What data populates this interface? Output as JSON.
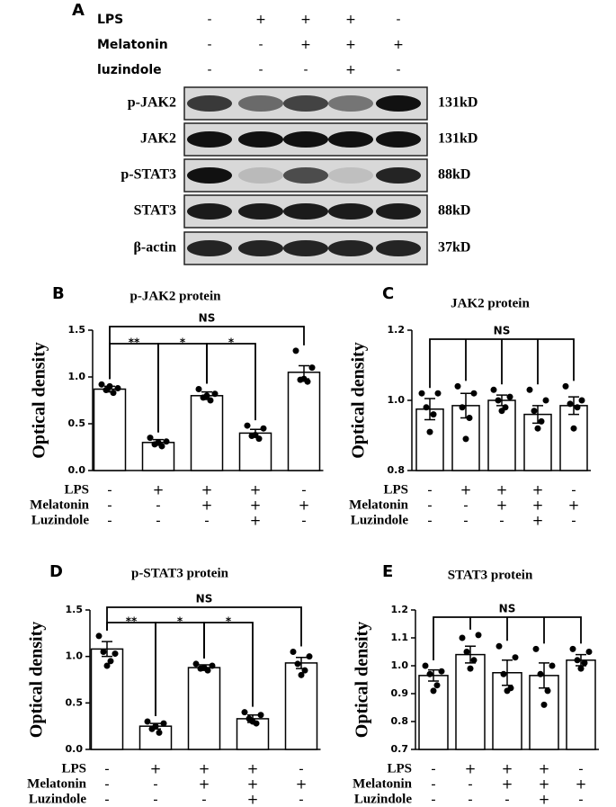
{
  "panel_a": {
    "letter": "A",
    "treatments": [
      {
        "name": "LPS",
        "signs": [
          "-",
          "+",
          "+",
          "+",
          "-"
        ]
      },
      {
        "name": "Melatonin",
        "signs": [
          "-",
          "-",
          "+",
          "+",
          "+"
        ]
      },
      {
        "name": "luzindole",
        "signs": [
          "-",
          "-",
          "-",
          "+",
          "-"
        ]
      }
    ],
    "blots": [
      {
        "name": "p-JAK2",
        "size": "131kD"
      },
      {
        "name": "JAK2",
        "size": "131kD"
      },
      {
        "name": "p-STAT3",
        "size": "88kD"
      },
      {
        "name": "STAT3",
        "size": "88kD"
      },
      {
        "name": "β-actin",
        "size": "37kD"
      }
    ]
  },
  "chart_data": [
    {
      "type": "bar",
      "panel": "B",
      "title": "p-JAK2 protein",
      "ylabel": "Optical density",
      "ylim": [
        0,
        1.5
      ],
      "yticks": [
        {
          "value": 0,
          "label": "0.0"
        },
        0.5,
        {
          "value": 1,
          "label": "1.0"
        },
        1.5
      ],
      "values": [
        0.87,
        0.3,
        0.8,
        0.4,
        1.05
      ],
      "errors": [
        0.03,
        0.03,
        0.04,
        0.04,
        0.07
      ],
      "points": [
        [
          0.92,
          0.88,
          0.86,
          0.83,
          0.9
        ],
        [
          0.35,
          0.31,
          0.28,
          0.26,
          0.3
        ],
        [
          0.87,
          0.82,
          0.78,
          0.75,
          0.8
        ],
        [
          0.48,
          0.45,
          0.37,
          0.34,
          0.38
        ],
        [
          1.28,
          1.1,
          0.97,
          0.95,
          0.98
        ]
      ],
      "color": "#ffffff",
      "annotations": [
        "**",
        "*",
        "*",
        "NS"
      ],
      "treatments": [
        {
          "name": "LPS",
          "signs": [
            "-",
            "+",
            "+",
            "+",
            "-"
          ]
        },
        {
          "name": "Melatonin",
          "signs": [
            "-",
            "-",
            "+",
            "+",
            "+"
          ]
        },
        {
          "name": "Luzindole",
          "signs": [
            "-",
            "-",
            "-",
            "+",
            "-"
          ]
        }
      ]
    },
    {
      "type": "bar",
      "panel": "C",
      "title": "JAK2 protein",
      "ylabel": "Optical density",
      "ylim": [
        0.8,
        1.2
      ],
      "yticks": [
        0.8,
        {
          "value": 1,
          "label": "1.0"
        },
        1.2
      ],
      "values": [
        0.975,
        0.985,
        1.0,
        0.96,
        0.985
      ],
      "errors": [
        0.03,
        0.035,
        0.015,
        0.025,
        0.025
      ],
      "points": [
        [
          1.02,
          1.02,
          0.98,
          0.96,
          0.91
        ],
        [
          1.04,
          1.02,
          0.98,
          0.95,
          0.89
        ],
        [
          1.03,
          1.01,
          1.0,
          0.98,
          0.97
        ],
        [
          1.03,
          1.0,
          0.97,
          0.94,
          0.92
        ],
        [
          1.04,
          1.0,
          0.99,
          0.98,
          0.92
        ]
      ],
      "color": "#ffffff",
      "annotations": [
        "NS"
      ],
      "treatments": [
        {
          "name": "LPS",
          "signs": [
            "-",
            "+",
            "+",
            "+",
            "-"
          ]
        },
        {
          "name": "Melatonin",
          "signs": [
            "-",
            "-",
            "+",
            "+",
            "+"
          ]
        },
        {
          "name": "Luzindole",
          "signs": [
            "-",
            "-",
            "-",
            "+",
            "-"
          ]
        }
      ]
    },
    {
      "type": "bar",
      "panel": "D",
      "title": "p-STAT3 protein",
      "ylabel": "Optical density",
      "ylim": [
        0,
        1.5
      ],
      "yticks": [
        {
          "value": 0,
          "label": "0.0"
        },
        0.5,
        {
          "value": 1,
          "label": "1.0"
        },
        1.5
      ],
      "values": [
        1.08,
        0.25,
        0.88,
        0.33,
        0.93
      ],
      "errors": [
        0.08,
        0.03,
        0.03,
        0.04,
        0.06
      ],
      "points": [
        [
          1.22,
          1.03,
          1.05,
          0.95,
          0.9
        ],
        [
          0.3,
          0.28,
          0.22,
          0.18,
          0.25
        ],
        [
          0.92,
          0.9,
          0.87,
          0.85,
          0.88
        ],
        [
          0.4,
          0.37,
          0.33,
          0.28,
          0.3
        ],
        [
          1.05,
          1.0,
          0.92,
          0.85,
          0.8
        ]
      ],
      "color": "#ffffff",
      "annotations": [
        "**",
        "*",
        "*",
        "NS"
      ],
      "treatments": [
        {
          "name": "LPS",
          "signs": [
            "-",
            "+",
            "+",
            "+",
            "-"
          ]
        },
        {
          "name": "Melatonin",
          "signs": [
            "-",
            "-",
            "+",
            "+",
            "+"
          ]
        },
        {
          "name": "Luzindole",
          "signs": [
            "-",
            "-",
            "-",
            "+",
            "-"
          ]
        }
      ]
    },
    {
      "type": "bar",
      "panel": "E",
      "title": "STAT3 protein",
      "ylabel": "Optical density",
      "ylim": [
        0.7,
        1.2
      ],
      "yticks": [
        0.7,
        0.8,
        0.9,
        {
          "value": 1,
          "label": "1.0"
        },
        1.1,
        1.2
      ],
      "values": [
        0.965,
        1.04,
        0.975,
        0.965,
        1.02
      ],
      "errors": [
        0.02,
        0.03,
        0.045,
        0.045,
        0.02
      ],
      "points": [
        [
          1.0,
          0.98,
          0.97,
          0.93,
          0.91
        ],
        [
          1.1,
          1.11,
          1.05,
          1.02,
          0.99
        ],
        [
          1.07,
          1.03,
          0.97,
          0.92,
          0.91
        ],
        [
          1.06,
          1.0,
          0.97,
          0.91,
          0.86
        ],
        [
          1.06,
          1.05,
          1.02,
          1.01,
          0.99
        ]
      ],
      "color": "#ffffff",
      "annotations": [
        "NS"
      ],
      "treatments": [
        {
          "name": "LPS",
          "signs": [
            "-",
            "+",
            "+",
            "+",
            "-"
          ]
        },
        {
          "name": "Melatonin",
          "signs": [
            "-",
            "-",
            "+",
            "+",
            "+"
          ]
        },
        {
          "name": "Luzindole",
          "signs": [
            "-",
            "-",
            "-",
            "+",
            "-"
          ]
        }
      ]
    }
  ]
}
